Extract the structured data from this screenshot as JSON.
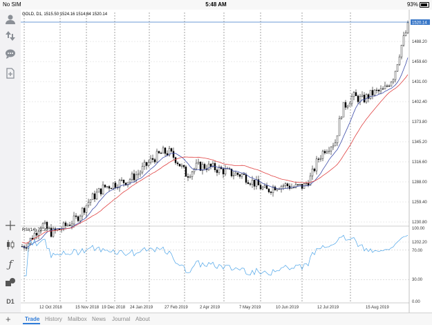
{
  "status": {
    "carrier": "No SIM",
    "time": "5:48 AM",
    "battery": "93%",
    "battery_level": 0.93
  },
  "chart": {
    "header": "GOLD, D1, 1515.50 1524.16 1514.84 1520.14",
    "price_labels": [
      "1488.20",
      "1459.60",
      "1431.00",
      "1402.40",
      "1373.80",
      "1345.20",
      "1316.60",
      "1288.00",
      "1259.40",
      "1230.80",
      "1202.20"
    ],
    "current_price": "1520.14",
    "accent": "#3a78c8",
    "rsi_label": "RSI(14) 72.39",
    "rsi_levels": [
      "100.00",
      "70.00",
      "30.00",
      "0.00"
    ],
    "date_labels": [
      "12 Oct 2018",
      "15 Nov 2018",
      "19 Dec 2018",
      "24 Jan 2019",
      "27 Feb 2019",
      "2 Apr 2019",
      "7 May 2019",
      "10 Jun 2019",
      "12 Jul 2019",
      "15 Aug 2019"
    ]
  },
  "sidebar": [
    "account-icon",
    "trade-up-down-icon",
    "chat-icon",
    "new-order-icon",
    "crosshair-icon",
    "candles-icon",
    "function-icon",
    "objects-icon",
    "timeframe-icon"
  ],
  "sidebar_timeframe": "D1",
  "tabs": [
    "Trade",
    "History",
    "Mailbox",
    "News",
    "Journal",
    "About"
  ]
}
